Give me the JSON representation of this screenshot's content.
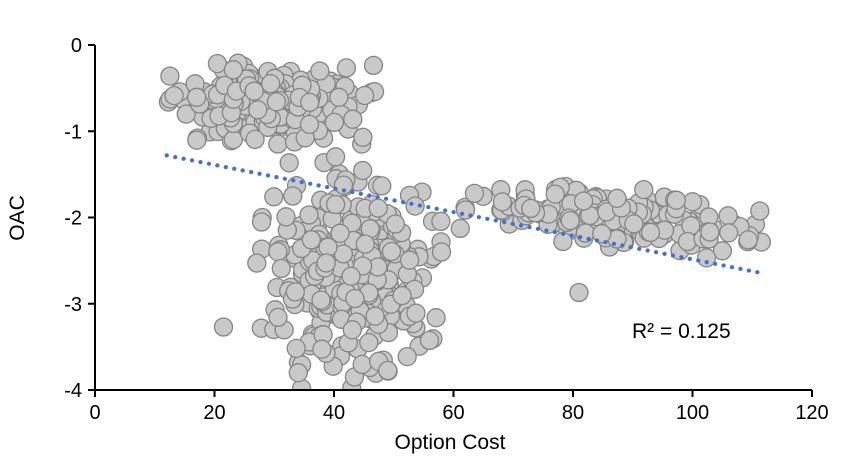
{
  "chart_data": {
    "type": "scatter",
    "title": "",
    "xlabel": "Option Cost",
    "ylabel": "OAC",
    "xlim": [
      0,
      120
    ],
    "ylim": [
      -4,
      0
    ],
    "xticks": [
      0,
      20,
      40,
      60,
      80,
      100,
      120
    ],
    "yticks": [
      0,
      -1,
      -2,
      -3,
      -4
    ],
    "grid": false,
    "legend": "none",
    "annotation": "R² = 0.125",
    "r_squared": 0.125,
    "marker": {
      "fill": "#c9c9c9",
      "stroke": "#858585",
      "stroke_width": 1.3,
      "radius_px": 9
    },
    "trendline": {
      "style": "dotted",
      "color": "#4472c4",
      "x_start": 12,
      "y_start": -1.28,
      "x_end": 112,
      "y_end": -2.65,
      "equation_slope": -0.0137,
      "equation_intercept": -1.116
    },
    "seed": 12345,
    "clusters": [
      {
        "label": "upper-left-blob",
        "count": 230,
        "x_min": 12,
        "x_max": 48,
        "y_min": -1.15,
        "y_max": -0.18,
        "slope": 0
      },
      {
        "label": "center-deep-blob",
        "count": 340,
        "x_min": 27,
        "x_max": 58,
        "y_min": -4.05,
        "y_max": -1.25,
        "slope": 0
      },
      {
        "label": "right-band",
        "count": 165,
        "x_min": 60,
        "x_max": 112,
        "y_min": -2.15,
        "y_max": -1.42,
        "slope": -0.008
      }
    ],
    "outliers": [
      [
        21.5,
        -3.27
      ],
      [
        81,
        -2.87
      ]
    ],
    "axis_color": "#000000"
  }
}
